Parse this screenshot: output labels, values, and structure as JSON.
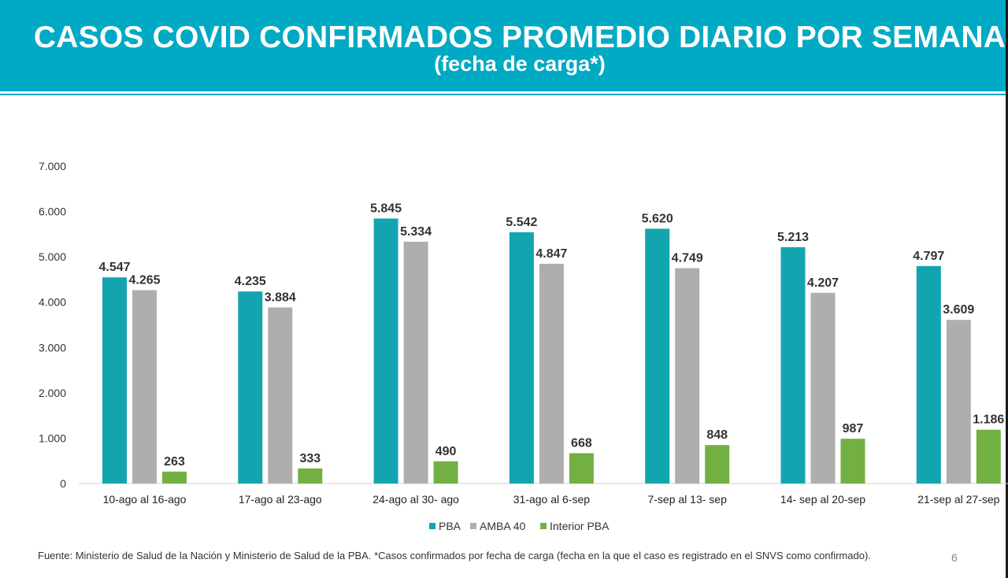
{
  "header": {
    "title": "CASOS COVID CONFIRMADOS PROMEDIO DIARIO POR SEMANA",
    "subtitle": "(fecha de carga*)"
  },
  "colors": {
    "banner": "#00a9c4",
    "pba": "#12a5b0",
    "amba": "#b0adad",
    "interior": "#72b043"
  },
  "chart_data": {
    "type": "bar",
    "title": "",
    "xlabel": "",
    "ylabel": "",
    "ylim": [
      0,
      7000
    ],
    "yticks": [
      0,
      1000,
      2000,
      3000,
      4000,
      5000,
      6000,
      7000
    ],
    "ytick_labels": [
      "0",
      "1.000",
      "2.000",
      "3.000",
      "4.000",
      "5.000",
      "6.000",
      "7.000"
    ],
    "grid": false,
    "legend_position": "bottom",
    "categories": [
      "10-ago al 16-ago",
      "17-ago al 23-ago",
      "24-ago al 30- ago",
      "31-ago al 6-sep",
      "7-sep al 13- sep",
      "14- sep al 20-sep",
      "21-sep al 27-sep"
    ],
    "series": [
      {
        "name": "PBA",
        "color": "#12a5b0",
        "values": [
          4547,
          4235,
          5845,
          5542,
          5620,
          5213,
          4797
        ],
        "labels": [
          "4.547",
          "4.235",
          "5.845",
          "5.542",
          "5.620",
          "5.213",
          "4.797"
        ]
      },
      {
        "name": "AMBA 40",
        "color": "#b0adad",
        "values": [
          4265,
          3884,
          5334,
          4847,
          4749,
          4207,
          3609
        ],
        "labels": [
          "4.265",
          "3.884",
          "5.334",
          "4.847",
          "4.749",
          "4.207",
          "3.609"
        ]
      },
      {
        "name": "Interior PBA",
        "color": "#72b043",
        "values": [
          263,
          333,
          490,
          668,
          848,
          987,
          1186
        ],
        "labels": [
          "263",
          "333",
          "490",
          "668",
          "848",
          "987",
          "1.186"
        ]
      }
    ]
  },
  "footer": {
    "source": "Fuente: Ministerio de Salud de la Nación y Ministerio de Salud de la PBA. *Casos confirmados por fecha de carga (fecha en la que el caso es registrado en el SNVS como confirmado).",
    "page_number": "6"
  }
}
